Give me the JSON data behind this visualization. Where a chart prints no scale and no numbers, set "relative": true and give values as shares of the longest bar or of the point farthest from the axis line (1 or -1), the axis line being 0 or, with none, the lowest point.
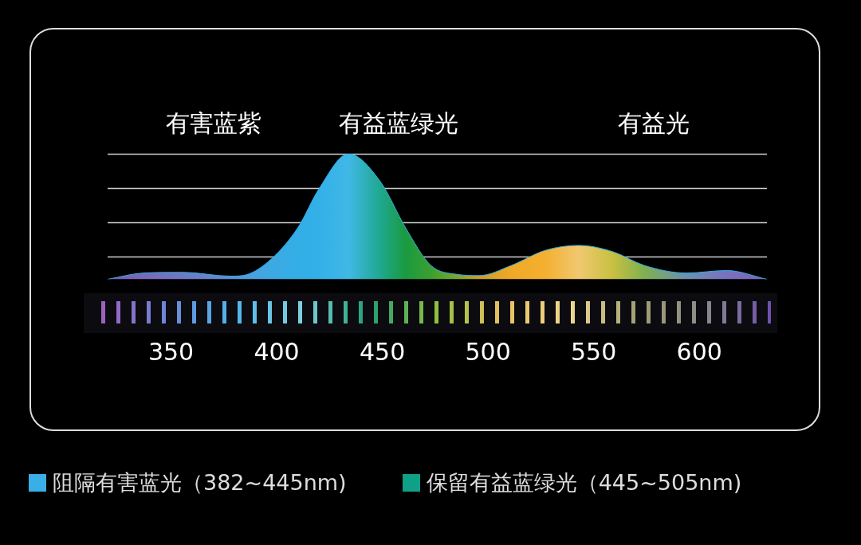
{
  "chart_data": {
    "type": "area",
    "relative": true,
    "grid": "y",
    "tick_labels": "x",
    "x": [
      320,
      337,
      356,
      378,
      384,
      396,
      410,
      420,
      434,
      449,
      461,
      473,
      485,
      496,
      511,
      527,
      543,
      559,
      574,
      594,
      613,
      632
    ],
    "xlim": [
      320,
      632
    ],
    "xticks": [
      350,
      400,
      450,
      500,
      550,
      600
    ],
    "series": [
      {
        "color": "#33aee6",
        "values": [
          0,
          0.05,
          0.055,
          0.025,
          0.03,
          0.14,
          0.41,
          0.72,
          1,
          0.78,
          0.41,
          0.11,
          0.04,
          0.03,
          0.11,
          0.23,
          0.27,
          0.22,
          0.11,
          0.05,
          0.07,
          0
        ],
        "colors": [
          "#7a5fb0",
          "#7a68b8",
          "#6f78c4",
          "#5f8cd4",
          "#4f9cdc",
          "#3fa8e2",
          "#33aee6",
          "#33b0e8",
          "#40b8e6",
          "#1fa890",
          "#1a9a40",
          "#3aa030",
          "#7aa830",
          "#c8a028",
          "#f0a828",
          "#f4b030",
          "#f0c870",
          "#c8c040",
          "#80b050",
          "#6a90b0",
          "#7a70c0",
          "#8060b8"
        ]
      }
    ],
    "annotations": [
      "有害蓝紫",
      "有益蓝绿光",
      "有益光",
      "阻隔有害蓝光（382~445nm)",
      "保留有益蓝绿光（445~505nm)"
    ]
  }
}
